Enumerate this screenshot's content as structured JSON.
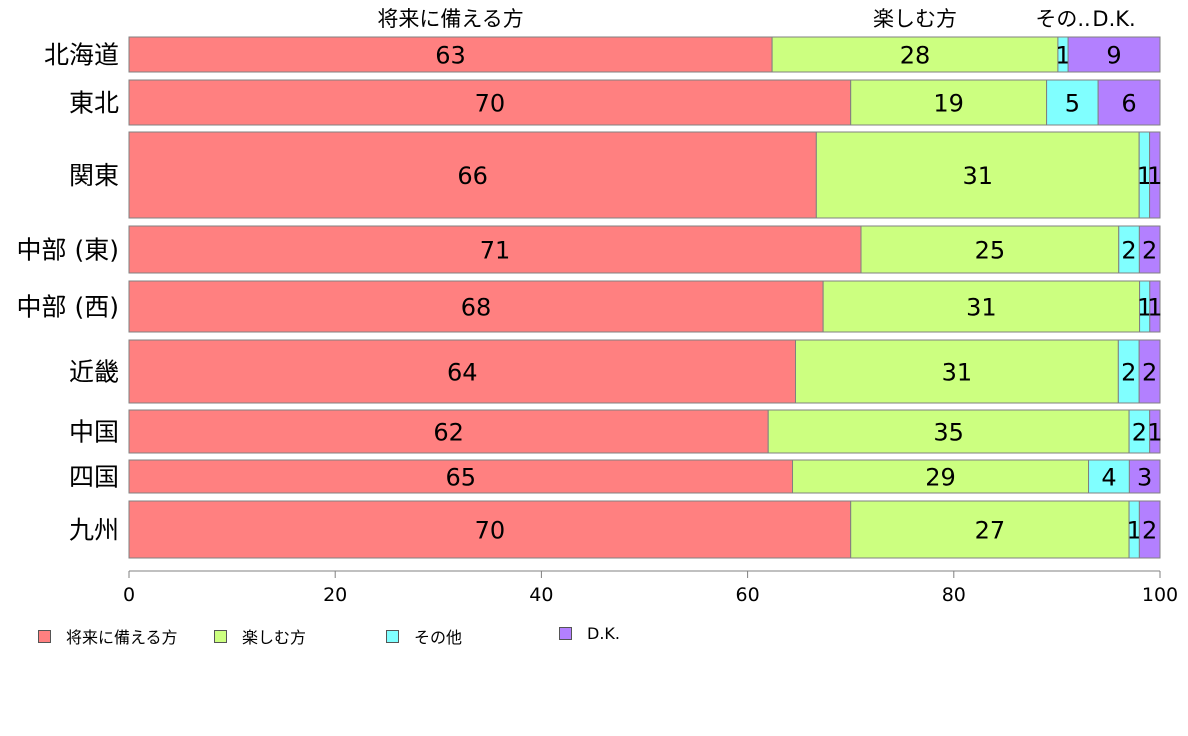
{
  "chart_data": {
    "type": "bar",
    "orientation": "horizontal",
    "stacked": true,
    "categories": [
      "北海道",
      "東北",
      "関東",
      "中部 (東)",
      "中部 (西)",
      "近畿",
      "中国",
      "四国",
      "九州"
    ],
    "series": [
      {
        "name": "将来に備える方",
        "color": "#ff8080",
        "values": [
          63,
          70,
          66,
          71,
          68,
          64,
          62,
          65,
          70
        ]
      },
      {
        "name": "楽しむ方",
        "color": "#ccff80",
        "values": [
          28,
          19,
          31,
          25,
          31,
          31,
          35,
          29,
          27
        ]
      },
      {
        "name": "その他",
        "color": "#80ffff",
        "values": [
          1,
          5,
          1,
          2,
          1,
          2,
          2,
          4,
          1
        ]
      },
      {
        "name": "D.K.",
        "color": "#b380ff",
        "values": [
          9,
          6,
          1,
          2,
          1,
          2,
          1,
          3,
          2
        ]
      }
    ],
    "top_labels": [
      "将来に備える方",
      "楽しむ方",
      "その..",
      "D.K."
    ],
    "xlim": [
      0,
      100
    ],
    "xticks": [
      0,
      20,
      40,
      60,
      80,
      100
    ],
    "grid": false,
    "legend_position": "bottom-left"
  }
}
